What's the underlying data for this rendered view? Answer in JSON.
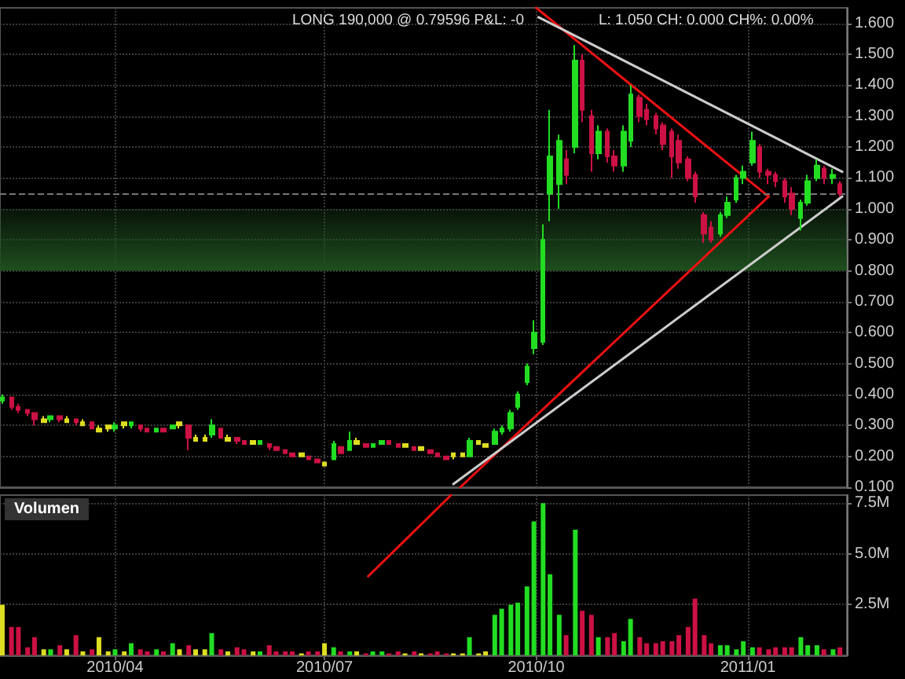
{
  "chart_data": [
    {
      "type": "candlestick",
      "annotations": [
        "LONG 190,000 @ 0.79596 P&L: -0",
        "L: 1.050 CH: 0.000 CH%: 0.00%"
      ],
      "xlim": [
        "2010-02-10",
        "2011-02-13"
      ],
      "xticks": [
        {
          "value": "2010-04-01",
          "label": null
        },
        {
          "value": "2010-07-01",
          "label": null
        },
        {
          "value": "2010-10-01",
          "label": null
        },
        {
          "value": "2011-01-01",
          "label": null
        }
      ],
      "ylim": [
        0.1,
        1.65
      ],
      "yticks": [
        {
          "value": 0.1,
          "label": "0.100"
        },
        {
          "value": 0.2,
          "label": "0.200"
        },
        {
          "value": 0.3,
          "label": "0.300"
        },
        {
          "value": 0.4,
          "label": "0.400"
        },
        {
          "value": 0.5,
          "label": "0.500"
        },
        {
          "value": 0.6,
          "label": "0.600"
        },
        {
          "value": 0.7,
          "label": "0.700"
        },
        {
          "value": 0.8,
          "label": "0.800"
        },
        {
          "value": 0.9,
          "label": "0.900"
        },
        {
          "value": 1.0,
          "label": "1.000"
        },
        {
          "value": 1.1,
          "label": "1.100"
        },
        {
          "value": 1.2,
          "label": "1.200"
        },
        {
          "value": 1.3,
          "label": "1.300"
        },
        {
          "value": 1.4,
          "label": "1.400"
        },
        {
          "value": 1.5,
          "label": "1.500"
        },
        {
          "value": 1.6,
          "label": "1.600"
        }
      ],
      "tick_labels": "y",
      "grid": true,
      "marker": "none",
      "bands": [
        {
          "axis": "y",
          "from": 0.8,
          "to": 1.0,
          "color": "#1f4f1f"
        }
      ],
      "ref_lines": [
        {
          "axis": "y",
          "value": 1.05,
          "color": "#777777",
          "line_style": "dashed"
        }
      ],
      "series": [
        {
          "x": [
            "2010-02-11",
            "2010-02-15",
            "2010-02-18",
            "2010-02-22",
            "2010-02-25",
            "2010-03-01",
            "2010-03-04",
            "2010-03-08",
            "2010-03-11",
            "2010-03-15",
            "2010-03-18",
            "2010-03-22",
            "2010-03-25",
            "2010-03-29",
            "2010-04-01",
            "2010-04-05",
            "2010-04-08",
            "2010-04-12",
            "2010-04-15",
            "2010-04-19",
            "2010-04-22",
            "2010-04-26",
            "2010-04-29",
            "2010-05-03",
            "2010-05-06",
            "2010-05-10",
            "2010-05-13",
            "2010-05-17",
            "2010-05-20",
            "2010-05-24",
            "2010-05-27",
            "2010-05-31",
            "2010-06-03",
            "2010-06-07",
            "2010-06-10",
            "2010-06-14",
            "2010-06-17",
            "2010-06-21",
            "2010-06-24",
            "2010-06-28",
            "2010-07-01",
            "2010-07-05",
            "2010-07-08",
            "2010-07-12",
            "2010-07-15",
            "2010-07-19",
            "2010-07-22",
            "2010-07-26",
            "2010-07-29",
            "2010-08-02",
            "2010-08-05",
            "2010-08-09",
            "2010-08-12",
            "2010-08-16",
            "2010-08-19",
            "2010-08-23",
            "2010-08-26",
            "2010-08-30",
            "2010-09-02",
            "2010-09-06",
            "2010-09-09",
            "2010-09-13",
            "2010-09-16",
            "2010-09-20",
            "2010-09-23",
            "2010-09-27",
            "2010-09-30",
            "2010-10-04",
            "2010-10-07",
            "2010-10-11",
            "2010-10-14",
            "2010-10-18",
            "2010-10-21",
            "2010-10-25",
            "2010-10-28",
            "2010-11-01",
            "2010-11-04",
            "2010-11-08",
            "2010-11-11",
            "2010-11-15",
            "2010-11-18",
            "2010-11-22",
            "2010-11-25",
            "2010-11-29",
            "2010-12-02",
            "2010-12-06",
            "2010-12-09",
            "2010-12-13",
            "2010-12-16",
            "2010-12-20",
            "2010-12-23",
            "2010-12-27",
            "2010-12-30",
            "2011-01-03",
            "2011-01-06",
            "2011-01-10",
            "2011-01-13",
            "2011-01-17",
            "2011-01-20",
            "2011-01-24",
            "2011-01-27",
            "2011-01-31",
            "2011-02-03",
            "2011-02-07",
            "2011-02-10"
          ],
          "ohlc": [
            [
              0.38,
              0.4,
              0.37,
              0.39
            ],
            [
              0.39,
              0.39,
              0.35,
              0.36
            ],
            [
              0.36,
              0.37,
              0.34,
              0.35
            ],
            [
              0.35,
              0.35,
              0.33,
              0.34
            ],
            [
              0.34,
              0.34,
              0.3,
              0.32
            ],
            [
              0.32,
              0.33,
              0.31,
              0.31
            ],
            [
              0.32,
              0.33,
              0.31,
              0.33
            ],
            [
              0.33,
              0.33,
              0.31,
              0.32
            ],
            [
              0.32,
              0.33,
              0.31,
              0.31
            ],
            [
              0.32,
              0.32,
              0.3,
              0.31
            ],
            [
              0.31,
              0.32,
              0.3,
              0.3
            ],
            [
              0.31,
              0.31,
              0.29,
              0.29
            ],
            [
              0.29,
              0.3,
              0.28,
              0.28
            ],
            [
              0.29,
              0.3,
              0.28,
              0.3
            ],
            [
              0.29,
              0.31,
              0.28,
              0.3
            ],
            [
              0.3,
              0.31,
              0.29,
              0.31
            ],
            [
              0.3,
              0.31,
              0.29,
              0.31
            ],
            [
              0.3,
              0.3,
              0.28,
              0.29
            ],
            [
              0.29,
              0.29,
              0.28,
              0.28
            ],
            [
              0.28,
              0.29,
              0.28,
              0.29
            ],
            [
              0.29,
              0.29,
              0.28,
              0.28
            ],
            [
              0.29,
              0.3,
              0.29,
              0.3
            ],
            [
              0.31,
              0.31,
              0.29,
              0.3
            ],
            [
              0.3,
              0.3,
              0.22,
              0.26
            ],
            [
              0.26,
              0.27,
              0.25,
              0.25
            ],
            [
              0.25,
              0.27,
              0.25,
              0.26
            ],
            [
              0.27,
              0.32,
              0.26,
              0.3
            ],
            [
              0.29,
              0.29,
              0.26,
              0.26
            ],
            [
              0.26,
              0.27,
              0.25,
              0.25
            ],
            [
              0.26,
              0.26,
              0.24,
              0.25
            ],
            [
              0.25,
              0.25,
              0.24,
              0.24
            ],
            [
              0.24,
              0.25,
              0.24,
              0.25
            ],
            [
              0.24,
              0.25,
              0.24,
              0.25
            ],
            [
              0.24,
              0.24,
              0.22,
              0.23
            ],
            [
              0.23,
              0.23,
              0.22,
              0.22
            ],
            [
              0.22,
              0.22,
              0.21,
              0.21
            ],
            [
              0.21,
              0.21,
              0.2,
              0.2
            ],
            [
              0.21,
              0.21,
              0.2,
              0.2
            ],
            [
              0.2,
              0.2,
              0.19,
              0.19
            ],
            [
              0.19,
              0.19,
              0.18,
              0.18
            ],
            [
              0.18,
              0.18,
              0.17,
              0.17
            ],
            [
              0.19,
              0.25,
              0.19,
              0.24
            ],
            [
              0.23,
              0.23,
              0.21,
              0.21
            ],
            [
              0.22,
              0.28,
              0.22,
              0.25
            ],
            [
              0.25,
              0.26,
              0.24,
              0.24
            ],
            [
              0.24,
              0.24,
              0.23,
              0.23
            ],
            [
              0.23,
              0.24,
              0.23,
              0.24
            ],
            [
              0.24,
              0.25,
              0.24,
              0.25
            ],
            [
              0.25,
              0.25,
              0.24,
              0.24
            ],
            [
              0.24,
              0.24,
              0.23,
              0.23
            ],
            [
              0.23,
              0.24,
              0.23,
              0.24
            ],
            [
              0.23,
              0.23,
              0.22,
              0.22
            ],
            [
              0.22,
              0.23,
              0.22,
              0.23
            ],
            [
              0.22,
              0.22,
              0.21,
              0.21
            ],
            [
              0.21,
              0.21,
              0.2,
              0.2
            ],
            [
              0.2,
              0.2,
              0.19,
              0.19
            ],
            [
              0.2,
              0.21,
              0.19,
              0.21
            ],
            [
              0.21,
              0.21,
              0.2,
              0.2
            ],
            [
              0.2,
              0.26,
              0.2,
              0.25
            ],
            [
              0.25,
              0.25,
              0.24,
              0.24
            ],
            [
              0.24,
              0.24,
              0.23,
              0.23
            ],
            [
              0.24,
              0.29,
              0.24,
              0.28
            ],
            [
              0.28,
              0.3,
              0.27,
              0.29
            ],
            [
              0.29,
              0.35,
              0.28,
              0.34
            ],
            [
              0.36,
              0.41,
              0.35,
              0.4
            ],
            [
              0.44,
              0.5,
              0.43,
              0.49
            ],
            [
              0.55,
              0.64,
              0.53,
              0.6
            ],
            [
              0.57,
              0.95,
              0.56,
              0.9
            ],
            [
              1.05,
              1.32,
              0.96,
              1.17
            ],
            [
              1.08,
              1.24,
              1.0,
              1.22
            ],
            [
              1.16,
              1.19,
              1.08,
              1.11
            ],
            [
              1.2,
              1.53,
              1.18,
              1.48
            ],
            [
              1.48,
              1.5,
              1.28,
              1.32
            ],
            [
              1.3,
              1.32,
              1.12,
              1.18
            ],
            [
              1.18,
              1.27,
              1.16,
              1.25
            ],
            [
              1.25,
              1.26,
              1.15,
              1.17
            ],
            [
              1.17,
              1.19,
              1.12,
              1.14
            ],
            [
              1.14,
              1.27,
              1.12,
              1.25
            ],
            [
              1.22,
              1.4,
              1.2,
              1.37
            ],
            [
              1.36,
              1.37,
              1.28,
              1.3
            ],
            [
              1.32,
              1.34,
              1.27,
              1.29
            ],
            [
              1.3,
              1.31,
              1.24,
              1.26
            ],
            [
              1.27,
              1.28,
              1.19,
              1.21
            ],
            [
              1.25,
              1.26,
              1.1,
              1.17
            ],
            [
              1.22,
              1.24,
              1.13,
              1.15
            ],
            [
              1.16,
              1.17,
              1.09,
              1.1
            ],
            [
              1.11,
              1.12,
              1.02,
              1.04
            ],
            [
              0.98,
              0.99,
              0.89,
              0.92
            ],
            [
              0.94,
              0.96,
              0.89,
              0.9
            ],
            [
              0.92,
              0.99,
              0.91,
              0.98
            ],
            [
              0.98,
              1.04,
              0.97,
              1.02
            ],
            [
              1.03,
              1.11,
              1.02,
              1.1
            ],
            [
              1.1,
              1.14,
              1.08,
              1.12
            ],
            [
              1.15,
              1.25,
              1.14,
              1.22
            ],
            [
              1.2,
              1.21,
              1.1,
              1.12
            ],
            [
              1.12,
              1.13,
              1.08,
              1.11
            ],
            [
              1.11,
              1.12,
              1.07,
              1.09
            ],
            [
              1.09,
              1.1,
              1.02,
              1.04
            ],
            [
              1.05,
              1.07,
              0.98,
              1.0
            ],
            [
              0.97,
              1.03,
              0.93,
              1.02
            ],
            [
              1.02,
              1.11,
              1.01,
              1.09
            ],
            [
              1.1,
              1.16,
              1.09,
              1.14
            ],
            [
              1.13,
              1.14,
              1.08,
              1.1
            ],
            [
              1.1,
              1.13,
              1.08,
              1.11
            ],
            [
              1.08,
              1.09,
              1.04,
              1.05
            ]
          ],
          "colors": [
            "#22dd22",
            "#cc1144",
            "#cc1144",
            "#cc1144",
            "#cc1144",
            "#dddd22",
            "#22dd22",
            "#cc1144",
            "#dddd22",
            "#cc1144",
            "#dddd22",
            "#cc1144",
            "#dddd22",
            "#dddd22",
            "#22dd22",
            "#dddd22",
            "#22dd22",
            "#cc1144",
            "#cc1144",
            "#22dd22",
            "#cc1144",
            "#22dd22",
            "#dddd22",
            "#cc1144",
            "#dddd22",
            "#dddd22",
            "#22dd22",
            "#cc1144",
            "#dddd22",
            "#cc1144",
            "#cc1144",
            "#dddd22",
            "#22dd22",
            "#cc1144",
            "#cc1144",
            "#cc1144",
            "#cc1144",
            "#dddd22",
            "#cc1144",
            "#cc1144",
            "#dddd22",
            "#22dd22",
            "#cc1144",
            "#22dd22",
            "#dddd22",
            "#cc1144",
            "#22dd22",
            "#22dd22",
            "#cc1144",
            "#cc1144",
            "#dddd22",
            "#cc1144",
            "#dddd22",
            "#cc1144",
            "#cc1144",
            "#cc1144",
            "#dddd22",
            "#dddd22",
            "#22dd22",
            "#dddd22",
            "#dddd22",
            "#22dd22",
            "#22dd22",
            "#22dd22",
            "#22dd22",
            "#22dd22",
            "#22dd22",
            "#22dd22",
            "#22dd22",
            "#22dd22",
            "#cc1144",
            "#22dd22",
            "#cc1144",
            "#cc1144",
            "#22dd22",
            "#cc1144",
            "#cc1144",
            "#22dd22",
            "#22dd22",
            "#cc1144",
            "#cc1144",
            "#cc1144",
            "#cc1144",
            "#cc1144",
            "#cc1144",
            "#cc1144",
            "#cc1144",
            "#cc1144",
            "#cc1144",
            "#22dd22",
            "#22dd22",
            "#22dd22",
            "#22dd22",
            "#22dd22",
            "#cc1144",
            "#cc1144",
            "#cc1144",
            "#cc1144",
            "#cc1144",
            "#22dd22",
            "#22dd22",
            "#22dd22",
            "#cc1144",
            "#22dd22",
            "#cc1144"
          ]
        },
        {
          "type": "line",
          "color": "#ee1111",
          "x": [
            "2010-08-29",
            "2011-01-10"
          ],
          "values": [
            0.1,
            1.04
          ]
        },
        {
          "type": "line",
          "color": "#ee1111",
          "x": [
            "2010-10-01",
            "2011-01-10"
          ],
          "values": [
            1.65,
            1.04
          ]
        },
        {
          "type": "line",
          "color": "#cccccc",
          "x": [
            "2010-10-02",
            "2011-02-11"
          ],
          "values": [
            1.62,
            1.12
          ]
        },
        {
          "type": "line",
          "color": "#cccccc",
          "x": [
            "2010-08-26",
            "2011-02-11"
          ],
          "values": [
            0.11,
            1.04
          ]
        }
      ]
    },
    {
      "type": "bar",
      "title": "Volumen",
      "xlim": [
        "2010-02-10",
        "2011-02-13"
      ],
      "xticks": [
        {
          "value": "2010-04-01",
          "label": "2010/04"
        },
        {
          "value": "2010-07-01",
          "label": "2010/07"
        },
        {
          "value": "2010-10-01",
          "label": "2010/10"
        },
        {
          "value": "2011-01-01",
          "label": "2011/01"
        }
      ],
      "ylim": [
        0,
        7.9
      ],
      "yticks": [
        {
          "value": 2.5,
          "label": "2.5M"
        },
        {
          "value": 5,
          "label": "5.0M"
        },
        {
          "value": 7.5,
          "label": "7.5M"
        }
      ],
      "grid": true,
      "marker": "none",
      "series": [
        {
          "x": [
            "2010-02-11",
            "2010-02-15",
            "2010-02-18",
            "2010-02-22",
            "2010-02-25",
            "2010-03-01",
            "2010-03-04",
            "2010-03-08",
            "2010-03-11",
            "2010-03-15",
            "2010-03-18",
            "2010-03-22",
            "2010-03-25",
            "2010-03-29",
            "2010-04-01",
            "2010-04-05",
            "2010-04-08",
            "2010-04-12",
            "2010-04-15",
            "2010-04-19",
            "2010-04-22",
            "2010-04-26",
            "2010-04-29",
            "2010-05-03",
            "2010-05-06",
            "2010-05-10",
            "2010-05-13",
            "2010-05-17",
            "2010-05-20",
            "2010-05-24",
            "2010-05-27",
            "2010-05-31",
            "2010-06-03",
            "2010-06-07",
            "2010-06-10",
            "2010-06-14",
            "2010-06-17",
            "2010-06-21",
            "2010-06-24",
            "2010-06-28",
            "2010-07-01",
            "2010-07-05",
            "2010-07-08",
            "2010-07-12",
            "2010-07-15",
            "2010-07-19",
            "2010-07-22",
            "2010-07-26",
            "2010-07-29",
            "2010-08-02",
            "2010-08-05",
            "2010-08-09",
            "2010-08-12",
            "2010-08-16",
            "2010-08-19",
            "2010-08-23",
            "2010-08-26",
            "2010-08-30",
            "2010-09-02",
            "2010-09-06",
            "2010-09-09",
            "2010-09-13",
            "2010-09-16",
            "2010-09-20",
            "2010-09-23",
            "2010-09-27",
            "2010-09-30",
            "2010-10-04",
            "2010-10-07",
            "2010-10-11",
            "2010-10-14",
            "2010-10-18",
            "2010-10-21",
            "2010-10-25",
            "2010-10-28",
            "2010-11-01",
            "2010-11-04",
            "2010-11-08",
            "2010-11-11",
            "2010-11-15",
            "2010-11-18",
            "2010-11-22",
            "2010-11-25",
            "2010-11-29",
            "2010-12-02",
            "2010-12-06",
            "2010-12-09",
            "2010-12-13",
            "2010-12-16",
            "2010-12-20",
            "2010-12-23",
            "2010-12-27",
            "2010-12-30",
            "2011-01-03",
            "2011-01-06",
            "2011-01-10",
            "2011-01-13",
            "2011-01-17",
            "2011-01-20",
            "2011-01-24",
            "2011-01-27",
            "2011-01-31",
            "2011-02-03",
            "2011-02-07",
            "2011-02-10"
          ],
          "values": [
            2.5,
            1.4,
            1.4,
            0.4,
            0.9,
            0.3,
            0.3,
            0.5,
            0.3,
            1.0,
            0.2,
            0.3,
            0.9,
            0.2,
            0.3,
            0.2,
            0.6,
            0.3,
            0.2,
            0.3,
            0.2,
            0.6,
            0.3,
            0.5,
            0.3,
            0.3,
            1.1,
            0.3,
            0.2,
            0.4,
            0.3,
            0.2,
            0.2,
            0.5,
            0.2,
            0.2,
            0.2,
            0.1,
            0.2,
            0.2,
            0.6,
            0.4,
            0.2,
            0.2,
            0.2,
            0.1,
            0.2,
            0.2,
            0.1,
            0.2,
            0.1,
            0.2,
            0.1,
            0.1,
            0.2,
            0.1,
            0.1,
            0.1,
            0.9,
            0.1,
            0.2,
            2.0,
            2.3,
            2.5,
            2.6,
            3.4,
            6.6,
            7.5,
            4.0,
            2.0,
            1.0,
            6.2,
            2.2,
            2.0,
            0.9,
            0.9,
            1.1,
            0.7,
            1.8,
            0.9,
            0.6,
            0.6,
            0.7,
            0.7,
            1.0,
            1.4,
            2.8,
            1.0,
            0.6,
            0.5,
            0.5,
            0.3,
            0.7,
            0.4,
            0.4,
            0.3,
            0.4,
            0.4,
            0.4,
            0.9,
            0.5,
            0.5,
            0.3,
            0.3,
            0.4
          ],
          "colors": [
            "#dddd22",
            "#cc1144",
            "#cc1144",
            "#cc1144",
            "#cc1144",
            "#dddd22",
            "#22dd22",
            "#cc1144",
            "#dddd22",
            "#cc1144",
            "#dddd22",
            "#cc1144",
            "#dddd22",
            "#dddd22",
            "#22dd22",
            "#dddd22",
            "#22dd22",
            "#cc1144",
            "#cc1144",
            "#22dd22",
            "#cc1144",
            "#22dd22",
            "#dddd22",
            "#cc1144",
            "#dddd22",
            "#dddd22",
            "#22dd22",
            "#cc1144",
            "#dddd22",
            "#cc1144",
            "#cc1144",
            "#dddd22",
            "#22dd22",
            "#cc1144",
            "#cc1144",
            "#cc1144",
            "#cc1144",
            "#dddd22",
            "#cc1144",
            "#cc1144",
            "#dddd22",
            "#22dd22",
            "#cc1144",
            "#22dd22",
            "#dddd22",
            "#cc1144",
            "#22dd22",
            "#22dd22",
            "#cc1144",
            "#cc1144",
            "#dddd22",
            "#cc1144",
            "#dddd22",
            "#cc1144",
            "#cc1144",
            "#cc1144",
            "#dddd22",
            "#dddd22",
            "#22dd22",
            "#dddd22",
            "#dddd22",
            "#22dd22",
            "#22dd22",
            "#22dd22",
            "#22dd22",
            "#22dd22",
            "#22dd22",
            "#22dd22",
            "#22dd22",
            "#22dd22",
            "#cc1144",
            "#22dd22",
            "#cc1144",
            "#cc1144",
            "#22dd22",
            "#cc1144",
            "#cc1144",
            "#22dd22",
            "#22dd22",
            "#cc1144",
            "#cc1144",
            "#cc1144",
            "#cc1144",
            "#cc1144",
            "#cc1144",
            "#cc1144",
            "#cc1144",
            "#cc1144",
            "#cc1144",
            "#22dd22",
            "#22dd22",
            "#22dd22",
            "#22dd22",
            "#22dd22",
            "#cc1144",
            "#cc1144",
            "#cc1144",
            "#cc1144",
            "#cc1144",
            "#22dd22",
            "#22dd22",
            "#22dd22",
            "#cc1144",
            "#22dd22",
            "#cc1144"
          ]
        },
        {
          "type": "line",
          "color": "#ee1111",
          "x": [
            "2010-07-20",
            "2010-08-25"
          ],
          "values": [
            3.9,
            7.9
          ]
        }
      ]
    }
  ]
}
